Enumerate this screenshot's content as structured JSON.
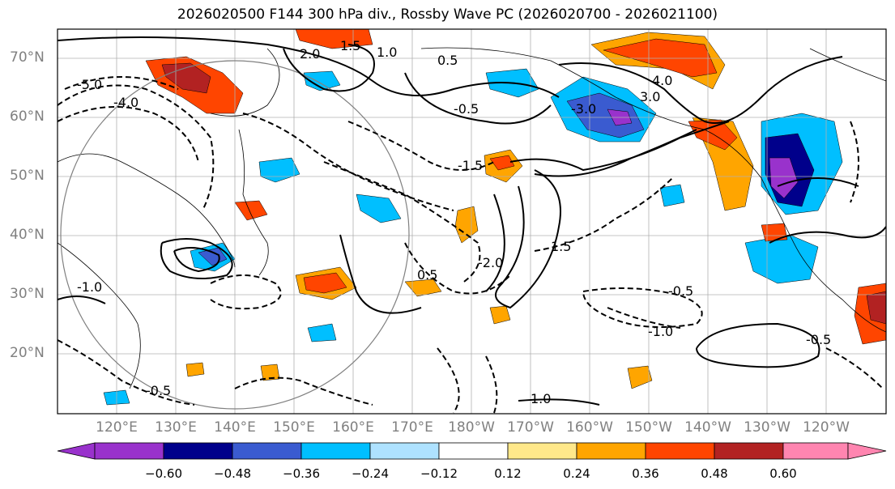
{
  "title": "2026020500 F144 300 hPa div., Rossby Wave PC (2026020700 - 2026021100)",
  "lat_labels": [
    "70°N",
    "60°N",
    "50°N",
    "40°N",
    "30°N",
    "20°N"
  ],
  "lon_labels": [
    "120°E",
    "130°E",
    "140°E",
    "150°E",
    "160°E",
    "170°E",
    "180°W",
    "170°W",
    "160°W",
    "150°W",
    "140°W",
    "130°W",
    "120°W"
  ],
  "colorbar": {
    "ticks": [
      "−0.60",
      "−0.48",
      "−0.36",
      "−0.24",
      "−0.12",
      "0.12",
      "0.24",
      "0.36",
      "0.48",
      "0.60"
    ],
    "colors": [
      "#9932cc",
      "#00008b",
      "#3a5bd0",
      "#00bfff",
      "#aee2ff",
      "#ffffff",
      "#ffe88a",
      "#ffa500",
      "#ff4500",
      "#b22222",
      "#ff85b0"
    ]
  },
  "contour_labels": [
    "2.0",
    "1.5",
    "1.0",
    "0.5",
    "-0.5",
    "-1.0",
    "-1.5",
    "-2.0",
    "-5.0",
    "-4.0",
    "4.0",
    "-3.0",
    "3.0",
    "1.0",
    "-0.5",
    "1.5",
    "-0.5",
    "-1.0",
    "-0.5",
    "0.5"
  ],
  "legend_note": ""
}
